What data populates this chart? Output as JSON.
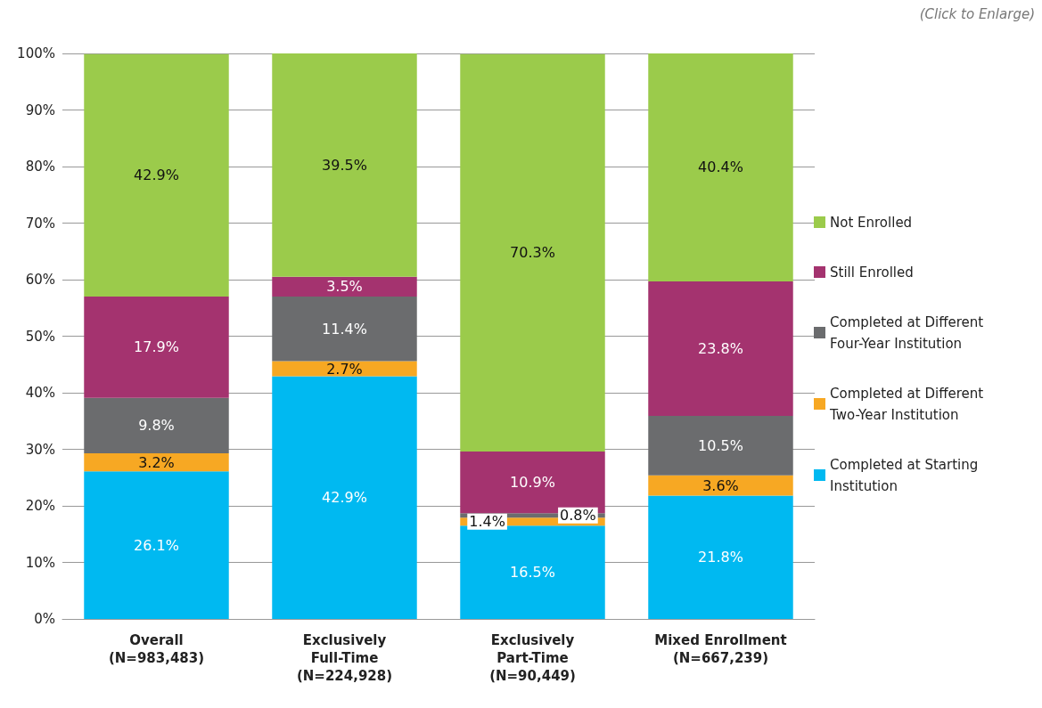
{
  "chart_data": {
    "type": "bar",
    "stacked": true,
    "categories": [
      "Overall\n(N=983,483)",
      "Exclusively\nFull-Time\n(N=224,928)",
      "Exclusively\nPart-Time\n(N=90,449)",
      "Mixed Enrollment\n(N=667,239)"
    ],
    "series": [
      {
        "name": "Completed at Starting Institution",
        "color": "#00b9f1",
        "values": [
          26.1,
          42.9,
          16.5,
          21.8
        ],
        "value_labels": [
          "26.1%",
          "42.9%",
          "16.5%",
          "21.8%"
        ]
      },
      {
        "name": "Completed at Different Two-Year Institution",
        "color": "#f7a823",
        "values": [
          3.2,
          2.7,
          1.4,
          3.6
        ],
        "value_labels": [
          "3.2%",
          "2.7%",
          "1.4%",
          "3.6%"
        ]
      },
      {
        "name": "Completed at Different Four-Year Institution",
        "color": "#6b6c6e",
        "values": [
          9.8,
          11.4,
          0.8,
          10.5
        ],
        "value_labels": [
          "9.8%",
          "11.4%",
          "0.8%",
          "10.5%"
        ]
      },
      {
        "name": "Still Enrolled",
        "color": "#a4336f",
        "values": [
          17.9,
          3.5,
          10.9,
          23.8
        ],
        "value_labels": [
          "17.9%",
          "3.5%",
          "10.9%",
          "23.8%"
        ]
      },
      {
        "name": "Not Enrolled",
        "color": "#9bcb4b",
        "values": [
          42.9,
          39.5,
          70.3,
          40.4
        ],
        "value_labels": [
          "42.9%",
          "39.5%",
          "70.3%",
          "40.4%"
        ]
      }
    ],
    "ylim": [
      0,
      100
    ],
    "yticks": [
      {
        "value": 0,
        "label": "0%"
      },
      {
        "value": 10,
        "label": "10%"
      },
      {
        "value": 20,
        "label": "20%"
      },
      {
        "value": 30,
        "label": "30%"
      },
      {
        "value": 40,
        "label": "40%"
      },
      {
        "value": 50,
        "label": "50%"
      },
      {
        "value": 60,
        "label": "60%"
      },
      {
        "value": 70,
        "label": "70%"
      },
      {
        "value": 80,
        "label": "80%"
      },
      {
        "value": 90,
        "label": "90%"
      },
      {
        "value": 100,
        "label": "100%"
      }
    ],
    "grid": "y",
    "legend": "right",
    "annotations": [
      "(Click to Enlarge)"
    ]
  }
}
